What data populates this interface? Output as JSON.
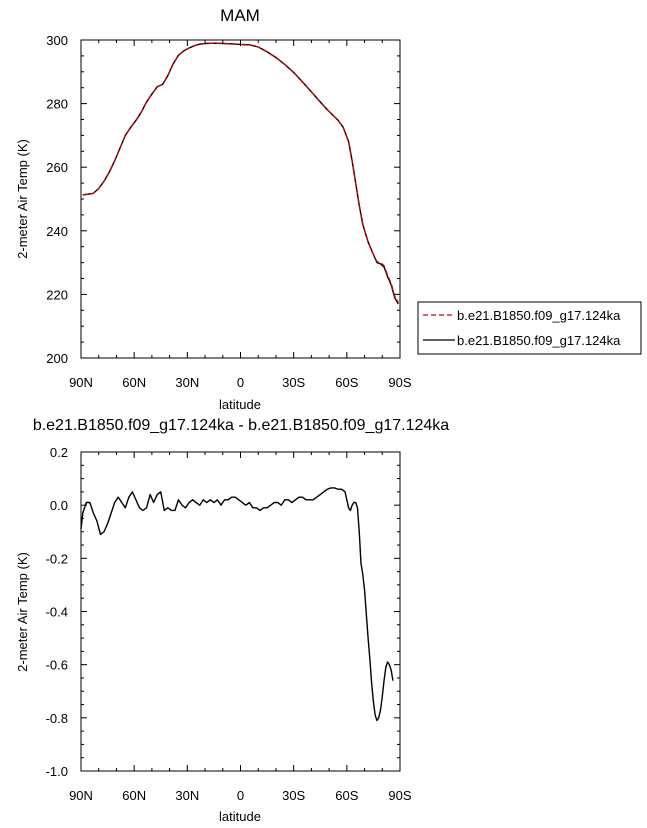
{
  "chart_data": [
    {
      "type": "line",
      "title": "MAM",
      "xlabel": "latitude",
      "ylabel": "2-meter Air Temp (K)",
      "xlim": [
        90,
        -90
      ],
      "ylim": [
        200,
        300
      ],
      "x_ticks": [
        90,
        60,
        30,
        0,
        -30,
        -60,
        -90
      ],
      "x_tick_labels": [
        "90N",
        "60N",
        "30N",
        "0",
        "30S",
        "60S",
        "90S"
      ],
      "y_ticks": [
        200,
        220,
        240,
        260,
        280,
        300
      ],
      "y_tick_labels": [
        "200",
        "220",
        "240",
        "260",
        "280",
        "300"
      ],
      "legend_position": "right",
      "series": [
        {
          "name": "b.e21.B1850.f09_g17.124ka",
          "color": "#cc0000",
          "dash": "dashed",
          "points": [
            [
              89,
              251.3
            ],
            [
              86,
              251.5
            ],
            [
              83,
              251.8
            ],
            [
              80,
              253.3
            ],
            [
              77,
              255.6
            ],
            [
              74,
              258.5
            ],
            [
              71,
              262.0
            ],
            [
              68,
              266.0
            ],
            [
              65,
              270.0
            ],
            [
              62,
              272.5
            ],
            [
              59,
              274.7
            ],
            [
              56,
              277.3
            ],
            [
              53,
              280.5
            ],
            [
              50,
              283.0
            ],
            [
              47,
              285.3
            ],
            [
              44,
              286.0
            ],
            [
              41,
              288.8
            ],
            [
              38,
              292.5
            ],
            [
              35,
              295.2
            ],
            [
              32,
              296.6
            ],
            [
              29,
              297.5
            ],
            [
              26,
              298.2
            ],
            [
              23,
              298.7
            ],
            [
              20,
              298.9
            ],
            [
              15,
              299.0
            ],
            [
              10,
              298.9
            ],
            [
              5,
              298.8
            ],
            [
              0,
              298.6
            ],
            [
              -5,
              298.5
            ],
            [
              -10,
              297.8
            ],
            [
              -15,
              296.3
            ],
            [
              -20,
              294.5
            ],
            [
              -25,
              292.3
            ],
            [
              -30,
              289.8
            ],
            [
              -35,
              286.8
            ],
            [
              -40,
              283.7
            ],
            [
              -45,
              280.5
            ],
            [
              -50,
              277.5
            ],
            [
              -55,
              274.8
            ],
            [
              -58,
              272.5
            ],
            [
              -61,
              268.0
            ],
            [
              -63,
              262.0
            ],
            [
              -65,
              255.0
            ],
            [
              -67,
              248.0
            ],
            [
              -69,
              242.0
            ],
            [
              -72,
              236.5
            ],
            [
              -75,
              232.5
            ],
            [
              -77,
              230.3
            ],
            [
              -79,
              230.0
            ],
            [
              -81,
              229.0
            ],
            [
              -83,
              226.0
            ],
            [
              -85,
              223.5
            ],
            [
              -87,
              219.5
            ],
            [
              -89,
              217.5
            ]
          ]
        },
        {
          "name": "b.e21.B1850.f09_g17.124ka",
          "color": "#000000",
          "dash": "solid",
          "points": [
            [
              89,
              251.3
            ],
            [
              86,
              251.5
            ],
            [
              83,
              251.8
            ],
            [
              80,
              253.3
            ],
            [
              77,
              255.6
            ],
            [
              74,
              258.5
            ],
            [
              71,
              262.0
            ],
            [
              68,
              266.0
            ],
            [
              65,
              270.0
            ],
            [
              62,
              272.5
            ],
            [
              59,
              274.7
            ],
            [
              56,
              277.3
            ],
            [
              53,
              280.5
            ],
            [
              50,
              283.0
            ],
            [
              47,
              285.3
            ],
            [
              44,
              286.0
            ],
            [
              41,
              288.8
            ],
            [
              38,
              292.5
            ],
            [
              35,
              295.2
            ],
            [
              32,
              296.6
            ],
            [
              29,
              297.5
            ],
            [
              26,
              298.2
            ],
            [
              23,
              298.7
            ],
            [
              20,
              298.9
            ],
            [
              15,
              299.0
            ],
            [
              10,
              298.9
            ],
            [
              5,
              298.8
            ],
            [
              0,
              298.6
            ],
            [
              -5,
              298.5
            ],
            [
              -10,
              297.8
            ],
            [
              -15,
              296.3
            ],
            [
              -20,
              294.5
            ],
            [
              -25,
              292.3
            ],
            [
              -30,
              289.8
            ],
            [
              -35,
              286.8
            ],
            [
              -40,
              283.7
            ],
            [
              -45,
              280.5
            ],
            [
              -50,
              277.5
            ],
            [
              -55,
              274.8
            ],
            [
              -58,
              272.5
            ],
            [
              -61,
              268.0
            ],
            [
              -63,
              262.0
            ],
            [
              -65,
              255.0
            ],
            [
              -67,
              248.0
            ],
            [
              -69,
              242.0
            ],
            [
              -72,
              236.5
            ],
            [
              -75,
              232.5
            ],
            [
              -77,
              230.0
            ],
            [
              -79,
              229.6
            ],
            [
              -81,
              228.6
            ],
            [
              -83,
              225.6
            ],
            [
              -85,
              223.0
            ],
            [
              -87,
              219.0
            ],
            [
              -89,
              217.0
            ]
          ]
        }
      ]
    },
    {
      "type": "line",
      "title": "b.e21.B1850.f09_g17.124ka - b.e21.B1850.f09_g17.124ka",
      "xlabel": "latitude",
      "ylabel": "2-meter Air Temp (K)",
      "xlim": [
        90,
        -90
      ],
      "ylim": [
        -1.0,
        0.2
      ],
      "x_ticks": [
        90,
        60,
        30,
        0,
        -30,
        -60,
        -90
      ],
      "x_tick_labels": [
        "90N",
        "60N",
        "30N",
        "0",
        "30S",
        "60S",
        "90S"
      ],
      "y_ticks": [
        -1.0,
        -0.8,
        -0.6,
        -0.4,
        -0.2,
        0.0,
        0.2
      ],
      "y_tick_labels": [
        "-1.0",
        "-0.8",
        "-0.6",
        "-0.4",
        "-0.2",
        "0.0",
        "0.2"
      ],
      "series": [
        {
          "color": "#000000",
          "dash": "solid",
          "points": [
            [
              90,
              -0.09
            ],
            [
              89,
              -0.03
            ],
            [
              87,
              0.01
            ],
            [
              85,
              0.01
            ],
            [
              83,
              -0.03
            ],
            [
              81,
              -0.06
            ],
            [
              79,
              -0.11
            ],
            [
              77,
              -0.1
            ],
            [
              75,
              -0.07
            ],
            [
              73,
              -0.03
            ],
            [
              71,
              0.01
            ],
            [
              69,
              0.03
            ],
            [
              67,
              0.01
            ],
            [
              65,
              -0.01
            ],
            [
              63,
              0.03
            ],
            [
              61,
              0.05
            ],
            [
              59,
              0.02
            ],
            [
              57,
              -0.01
            ],
            [
              55,
              -0.02
            ],
            [
              53,
              -0.01
            ],
            [
              51,
              0.04
            ],
            [
              49,
              0.01
            ],
            [
              47,
              0.04
            ],
            [
              45,
              0.05
            ],
            [
              43,
              -0.02
            ],
            [
              41,
              -0.01
            ],
            [
              39,
              -0.02
            ],
            [
              37,
              -0.02
            ],
            [
              35,
              0.02
            ],
            [
              33,
              0.0
            ],
            [
              31,
              -0.01
            ],
            [
              29,
              0.01
            ],
            [
              27,
              0.02
            ],
            [
              25,
              0.01
            ],
            [
              23,
              0.0
            ],
            [
              21,
              0.02
            ],
            [
              19,
              0.01
            ],
            [
              17,
              0.02
            ],
            [
              15,
              0.01
            ],
            [
              13,
              0.02
            ],
            [
              11,
              0.0
            ],
            [
              9,
              0.02
            ],
            [
              7,
              0.02
            ],
            [
              5,
              0.03
            ],
            [
              3,
              0.03
            ],
            [
              1,
              0.02
            ],
            [
              -1,
              0.01
            ],
            [
              -3,
              0.0
            ],
            [
              -5,
              0.01
            ],
            [
              -7,
              -0.01
            ],
            [
              -9,
              -0.01
            ],
            [
              -11,
              -0.02
            ],
            [
              -13,
              -0.01
            ],
            [
              -15,
              -0.01
            ],
            [
              -17,
              0.0
            ],
            [
              -19,
              0.01
            ],
            [
              -21,
              0.01
            ],
            [
              -23,
              0.0
            ],
            [
              -25,
              0.02
            ],
            [
              -27,
              0.02
            ],
            [
              -29,
              0.01
            ],
            [
              -31,
              0.02
            ],
            [
              -33,
              0.03
            ],
            [
              -35,
              0.03
            ],
            [
              -37,
              0.02
            ],
            [
              -39,
              0.02
            ],
            [
              -41,
              0.02
            ],
            [
              -43,
              0.03
            ],
            [
              -45,
              0.04
            ],
            [
              -47,
              0.05
            ],
            [
              -49,
              0.06
            ],
            [
              -51,
              0.065
            ],
            [
              -53,
              0.065
            ],
            [
              -55,
              0.06
            ],
            [
              -57,
              0.06
            ],
            [
              -59,
              0.05
            ],
            [
              -60,
              0.02
            ],
            [
              -61,
              -0.01
            ],
            [
              -62,
              -0.02
            ],
            [
              -63,
              0.0
            ],
            [
              -64,
              0.01
            ],
            [
              -65,
              0.01
            ],
            [
              -66,
              -0.01
            ],
            [
              -67,
              -0.1
            ],
            [
              -68,
              -0.22
            ],
            [
              -69,
              -0.26
            ],
            [
              -70,
              -0.32
            ],
            [
              -71,
              -0.41
            ],
            [
              -72,
              -0.5
            ],
            [
              -73,
              -0.58
            ],
            [
              -74,
              -0.67
            ],
            [
              -75,
              -0.74
            ],
            [
              -76,
              -0.79
            ],
            [
              -77,
              -0.81
            ],
            [
              -78,
              -0.8
            ],
            [
              -79,
              -0.77
            ],
            [
              -80,
              -0.72
            ],
            [
              -81,
              -0.66
            ],
            [
              -82,
              -0.61
            ],
            [
              -83,
              -0.59
            ],
            [
              -84,
              -0.6
            ],
            [
              -85,
              -0.62
            ],
            [
              -86,
              -0.66
            ]
          ]
        }
      ]
    }
  ]
}
